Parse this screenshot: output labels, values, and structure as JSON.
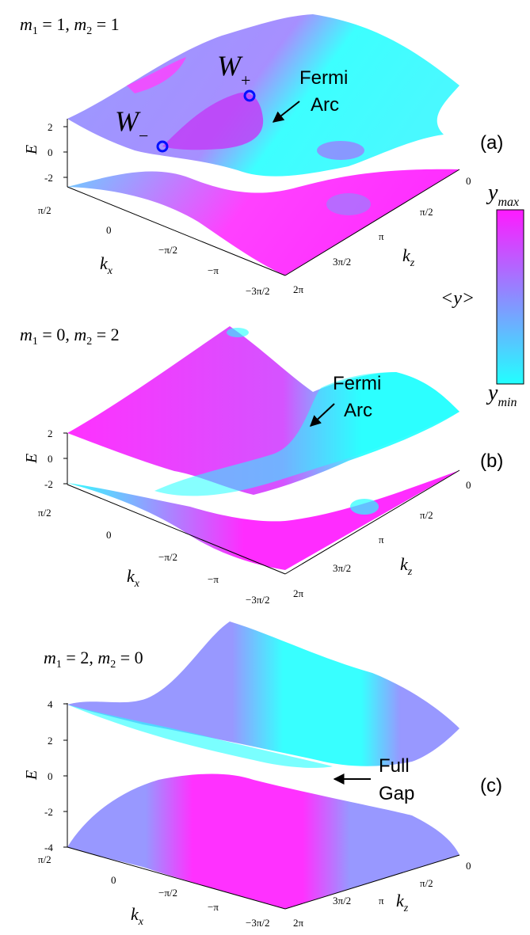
{
  "colors": {
    "y_max": "#ff1aff",
    "y_mid": "#8c8cff",
    "y_min": "#22ffff",
    "purple_band": "#a070f0",
    "axis": "#000000"
  },
  "colorbar": {
    "top_label": "y",
    "top_sub": "max",
    "bottom_label": "y",
    "bottom_sub": "min",
    "side_label": "<y>"
  },
  "panels": [
    {
      "id": "a",
      "tag": "(a)",
      "title": {
        "m1": "1",
        "m2": "1"
      },
      "e_ticks": [
        "2",
        "0",
        "-2"
      ],
      "kx_ticks": [
        "π/2",
        "0",
        "−π/2",
        "−π",
        "−3π/2"
      ],
      "kz_ticks": [
        "0",
        "π/2",
        "π",
        "3π/2",
        "2π"
      ],
      "annotation": [
        "Fermi",
        "Arc"
      ],
      "weyl": {
        "minus": "−",
        "plus": "+",
        "letter": "W"
      }
    },
    {
      "id": "b",
      "tag": "(b)",
      "title": {
        "m1": "0",
        "m2": "2"
      },
      "e_ticks": [
        "2",
        "0",
        "-2"
      ],
      "kx_ticks": [
        "π/2",
        "0",
        "−π/2",
        "−π",
        "−3π/2"
      ],
      "kz_ticks": [
        "0",
        "π/2",
        "π",
        "3π/2",
        "2π"
      ],
      "annotation": [
        "Fermi",
        "Arc"
      ]
    },
    {
      "id": "c",
      "tag": "(c)",
      "title": {
        "m1": "2",
        "m2": "0"
      },
      "e_ticks": [
        "4",
        "2",
        "0",
        "-2",
        "-4"
      ],
      "kx_ticks": [
        "π/2",
        "0",
        "−π/2",
        "−π",
        "−3π/2"
      ],
      "kz_ticks": [
        "0",
        "π/2",
        "π",
        "3π/2",
        "2π"
      ],
      "annotation": [
        "Full",
        "Gap"
      ]
    }
  ],
  "axis_labels": {
    "E": "E",
    "kx": "k",
    "kx_sub": "x",
    "kz": "k",
    "kz_sub": "z"
  }
}
